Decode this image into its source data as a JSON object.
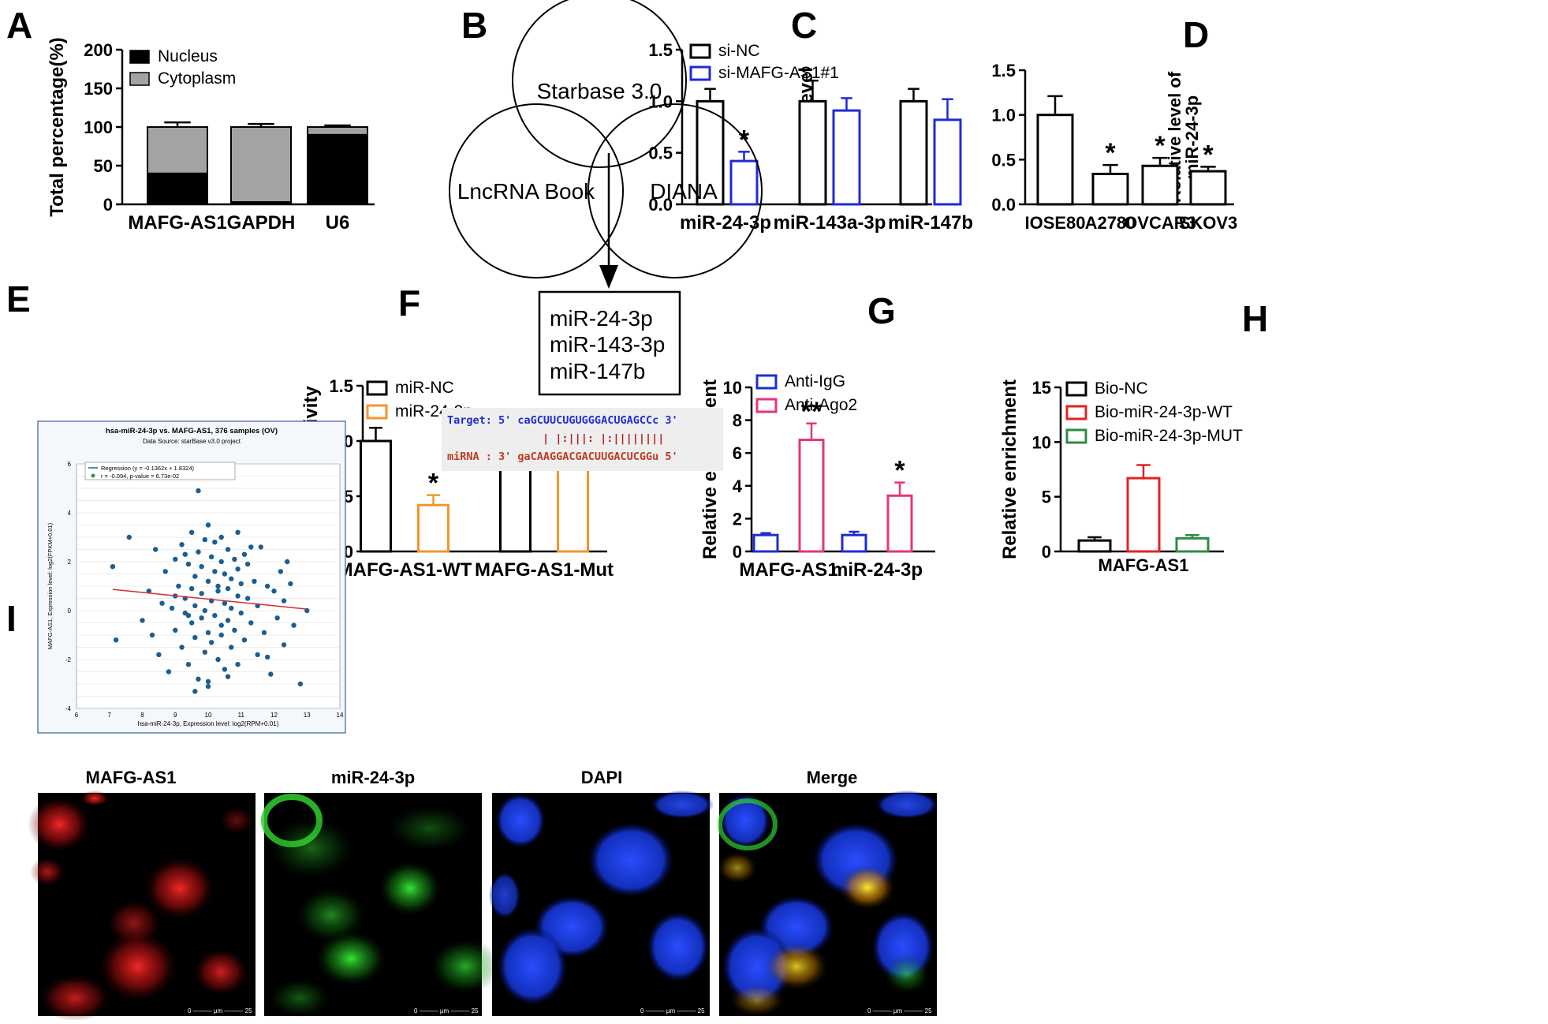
{
  "panels": {
    "A": "A",
    "B": "B",
    "C": "C",
    "D": "D",
    "E": "E",
    "F": "F",
    "G": "G",
    "H": "H",
    "I": "I"
  },
  "colors": {
    "black": "#000000",
    "gray": "#a3a3a3",
    "blue": "#1f2bd6",
    "orange": "#f2962b",
    "pink": "#e6347e",
    "red": "#e32222",
    "green": "#2e8b46",
    "scatter_point": "#1b5e91",
    "regression": "#d62d2d"
  },
  "venn": {
    "circles": [
      "Starbase 3.0",
      "LncRNA Book",
      "DIANA"
    ],
    "result": [
      "miR-24-3p",
      "miR-143-3p",
      "miR-147b"
    ]
  },
  "binding": {
    "target": "Target: 5' caGCUUCUGUGGGACUGAGCCc 3'",
    "pairs": "| |:|||: |:||||||||",
    "mirna": "miRNA : 3' gaCAAGGACGACUUGACUCGGu 5'"
  },
  "images": {
    "labels": [
      "MAFG-AS1",
      "miR-24-3p",
      "DAPI",
      "Merge"
    ],
    "scalebar": [
      "0",
      "μm",
      "25"
    ]
  },
  "chart_data": [
    {
      "panel": "A",
      "type": "bar",
      "stacked": true,
      "categories": [
        "MAFG-AS1",
        "GAPDH",
        "U6"
      ],
      "series": [
        {
          "name": "Nucleus",
          "values": [
            40,
            3,
            90
          ],
          "error": [
            4,
            1,
            2
          ]
        },
        {
          "name": "Cytoplasm",
          "values": [
            60,
            97,
            10
          ],
          "error": [
            6,
            4,
            2
          ]
        }
      ],
      "ylabel": "Total percentage(%)",
      "ylim": [
        0,
        200
      ],
      "yticks": [
        "0",
        "50",
        "100",
        "150",
        "200"
      ],
      "legend": "top"
    },
    {
      "panel": "C",
      "type": "bar",
      "categories": [
        "miR-24-3p",
        "miR-143a-3p",
        "miR-147b"
      ],
      "series": [
        {
          "name": "si-NC",
          "values": [
            1.0,
            1.0,
            1.0
          ],
          "error": [
            0.12,
            0.2,
            0.12
          ]
        },
        {
          "name": "si-MAFG-AS1#1",
          "values": [
            0.42,
            0.91,
            0.82
          ],
          "error": [
            0.09,
            0.12,
            0.2
          ]
        }
      ],
      "significance": [
        "*",
        "",
        ""
      ],
      "ylabel": "Relative level",
      "ylim": [
        0,
        1.5
      ],
      "yticks": [
        "0.0",
        "0.5",
        "1.0",
        "1.5"
      ],
      "legend": "top-left"
    },
    {
      "panel": "D",
      "type": "bar",
      "categories": [
        "IOSE80",
        "A2780",
        "OVCAR3",
        "SKOV3"
      ],
      "series": [
        {
          "name": "",
          "values": [
            1.0,
            0.34,
            0.43,
            0.37
          ],
          "error": [
            0.21,
            0.1,
            0.09,
            0.05
          ]
        }
      ],
      "significance": [
        "",
        "*",
        "*",
        "*"
      ],
      "ylabel": [
        "Relative level of",
        "miR-24-3p"
      ],
      "ylim": [
        0,
        1.5
      ],
      "yticks": [
        "0.0",
        "0.5",
        "1.0",
        "1.5"
      ]
    },
    {
      "panel": "E",
      "type": "scatter",
      "title": "hsa-miR-24-3p vs. MAFG-AS1, 376 samples (OV)",
      "subtitle": "Data Source: starBase v3.0 project",
      "legend": [
        "Regression (y = -0.1362x + 1.8324)",
        "r = -0.094, p-value = 6.73e-02"
      ],
      "xlabel": "hsa-miR-24-3p, Expression level: log2(RPM+0.01)",
      "ylabel": "MAFG-AS1, Expression level: log2(FPKM+0.01)",
      "xlim": [
        6,
        14
      ],
      "ylim": [
        -4,
        6
      ],
      "xticks": [
        "6",
        "7",
        "8",
        "9",
        "10",
        "11",
        "12",
        "13",
        "14"
      ],
      "yticks": [
        "-4",
        "-2",
        "0",
        "2",
        "4",
        "6"
      ],
      "regression": {
        "slope": -0.1362,
        "intercept": 1.8324,
        "x_range": [
          7.1,
          13.0
        ]
      },
      "points": [
        [
          7.1,
          1.8
        ],
        [
          7.2,
          -1.2
        ],
        [
          7.6,
          3.0
        ],
        [
          8.0,
          -0.4
        ],
        [
          8.2,
          0.8
        ],
        [
          8.4,
          2.5
        ],
        [
          8.5,
          -1.8
        ],
        [
          8.6,
          0.3
        ],
        [
          8.7,
          1.6
        ],
        [
          8.8,
          -2.5
        ],
        [
          8.9,
          0.1
        ],
        [
          9.0,
          2.1
        ],
        [
          9.0,
          -0.8
        ],
        [
          9.1,
          1.0
        ],
        [
          9.2,
          2.7
        ],
        [
          9.2,
          -1.5
        ],
        [
          9.3,
          0.5
        ],
        [
          9.3,
          -0.1
        ],
        [
          9.4,
          1.9
        ],
        [
          9.4,
          -2.2
        ],
        [
          9.5,
          0.9
        ],
        [
          9.5,
          3.2
        ],
        [
          9.5,
          -0.5
        ],
        [
          9.6,
          1.4
        ],
        [
          9.6,
          -1.1
        ],
        [
          9.6,
          0.2
        ],
        [
          9.7,
          2.4
        ],
        [
          9.7,
          -2.8
        ],
        [
          9.7,
          4.9
        ],
        [
          9.8,
          0.7
        ],
        [
          9.8,
          -0.3
        ],
        [
          9.8,
          1.8
        ],
        [
          9.9,
          -1.7
        ],
        [
          9.9,
          2.9
        ],
        [
          9.9,
          0.0
        ],
        [
          10.0,
          1.2
        ],
        [
          10.0,
          -0.9
        ],
        [
          10.0,
          3.5
        ],
        [
          10.0,
          -3.1
        ],
        [
          10.1,
          0.4
        ],
        [
          10.1,
          2.2
        ],
        [
          10.1,
          -1.3
        ],
        [
          10.2,
          1.6
        ],
        [
          10.2,
          -0.2
        ],
        [
          10.2,
          2.8
        ],
        [
          10.3,
          0.8
        ],
        [
          10.3,
          -2.0
        ],
        [
          10.3,
          1.0
        ],
        [
          10.4,
          -0.6
        ],
        [
          10.4,
          2.0
        ],
        [
          10.4,
          -1.0
        ],
        [
          10.5,
          0.3
        ],
        [
          10.5,
          1.5
        ],
        [
          10.5,
          -2.4
        ],
        [
          10.6,
          0.9
        ],
        [
          10.6,
          2.5
        ],
        [
          10.6,
          -0.4
        ],
        [
          10.7,
          1.3
        ],
        [
          10.7,
          -1.5
        ],
        [
          10.7,
          0.1
        ],
        [
          10.8,
          2.1
        ],
        [
          10.8,
          -0.8
        ],
        [
          10.9,
          0.6
        ],
        [
          10.9,
          1.7
        ],
        [
          10.9,
          -2.2
        ],
        [
          11.0,
          -0.1
        ],
        [
          11.0,
          1.1
        ],
        [
          11.1,
          2.3
        ],
        [
          11.1,
          -1.2
        ],
        [
          11.2,
          0.5
        ],
        [
          11.2,
          1.9
        ],
        [
          11.3,
          -0.5
        ],
        [
          11.4,
          1.2
        ],
        [
          11.5,
          -1.8
        ],
        [
          11.5,
          0.2
        ],
        [
          11.6,
          2.6
        ],
        [
          11.7,
          -0.9
        ],
        [
          11.8,
          1.0
        ],
        [
          11.9,
          -2.6
        ],
        [
          12.0,
          0.8
        ],
        [
          12.1,
          -0.3
        ],
        [
          12.2,
          1.6
        ],
        [
          12.3,
          -1.4
        ],
        [
          12.3,
          0.4
        ],
        [
          12.4,
          2.0
        ],
        [
          12.6,
          -0.6
        ],
        [
          12.8,
          -3.0
        ],
        [
          13.0,
          0.0
        ],
        [
          9.6,
          -3.3
        ],
        [
          10.0,
          -2.9
        ],
        [
          10.4,
          3.0
        ],
        [
          9.3,
          2.3
        ],
        [
          11.3,
          2.6
        ],
        [
          9.0,
          0.6
        ],
        [
          10.6,
          -2.7
        ],
        [
          11.8,
          -1.9
        ],
        [
          8.3,
          -1.0
        ],
        [
          12.5,
          1.1
        ],
        [
          10.9,
          3.2
        ],
        [
          9.4,
          -0.2
        ]
      ]
    },
    {
      "panel": "F",
      "type": "bar",
      "categories": [
        "MAFG-AS1-WT",
        "MAFG-AS1-Mut"
      ],
      "series": [
        {
          "name": "miR-NC",
          "values": [
            1.0,
            0.98
          ],
          "error": [
            0.12,
            0.2
          ]
        },
        {
          "name": "miR-24-3p",
          "values": [
            0.42,
            0.89
          ],
          "error": [
            0.09,
            0.12
          ]
        }
      ],
      "significance": [
        "*",
        ""
      ],
      "ylabel": "Luciferase activity",
      "ylim": [
        0,
        1.5
      ],
      "yticks": [
        "0.0",
        "0.5",
        "1.0",
        "1.5"
      ],
      "legend": "top-left"
    },
    {
      "panel": "G",
      "type": "bar",
      "categories": [
        "MAFG-AS1",
        "miR-24-3p"
      ],
      "series": [
        {
          "name": "Anti-IgG",
          "values": [
            1.0,
            1.0
          ],
          "error": [
            0.12,
            0.2
          ]
        },
        {
          "name": "Anti-Ago2",
          "values": [
            6.8,
            3.4
          ],
          "error": [
            1.0,
            0.8
          ]
        }
      ],
      "significance": [
        "**",
        "*"
      ],
      "ylabel": "Relative enrichment",
      "ylim": [
        0,
        10
      ],
      "yticks": [
        "0",
        "2",
        "4",
        "6",
        "8",
        "10"
      ],
      "legend": "top-left"
    },
    {
      "panel": "H",
      "type": "bar",
      "categories": [
        "MAFG-AS1"
      ],
      "series": [
        {
          "name": "Bio-NC",
          "values": [
            1.0
          ],
          "error": [
            0.3
          ]
        },
        {
          "name": "Bio-miR-24-3p-WT",
          "values": [
            6.7
          ],
          "error": [
            1.2
          ]
        },
        {
          "name": "Bio-miR-24-3p-MUT",
          "values": [
            1.2
          ],
          "error": [
            0.3
          ]
        }
      ],
      "significance": [
        "",
        "**",
        ""
      ],
      "ylabel": "Relative enrichment",
      "ylim": [
        0,
        15
      ],
      "yticks": [
        "0",
        "5",
        "10",
        "15"
      ],
      "legend": "top-left"
    }
  ]
}
